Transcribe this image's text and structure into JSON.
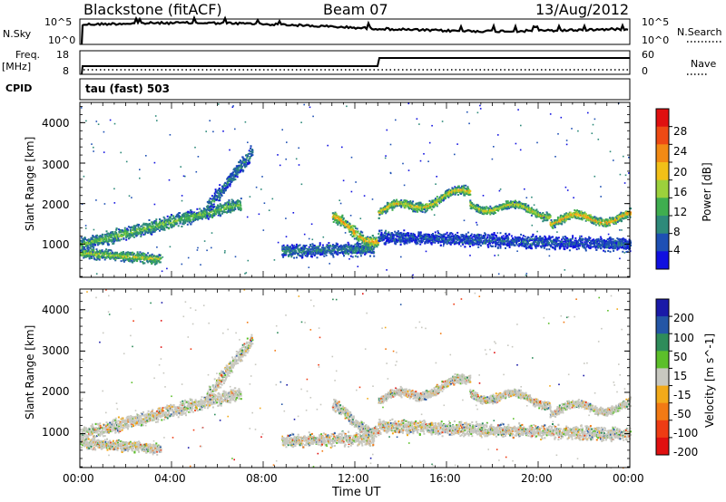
{
  "header": {
    "station": "Blackstone (fitACF)",
    "beam": "Beam 07",
    "date": "13/Aug/2012"
  },
  "summary_panels": {
    "nsky_label": "N.Sky",
    "nsky_ticks": [
      "10^5",
      "10^0"
    ],
    "nsearch_label": "N.Search",
    "nsearch_ticks": [
      "10^5",
      "10^0"
    ],
    "freq_label": "Freq.",
    "freq_unit": "[MHz]",
    "freq_ticks": [
      "18",
      "8"
    ],
    "nave_label": "Nave",
    "nave_ticks": [
      "60",
      "0"
    ],
    "cpid_label": "CPID",
    "cpid_value": "tau (fast) 503"
  },
  "chart_data": [
    {
      "type": "heatmap",
      "panel": "power",
      "ylabel": "Slant Range [km]",
      "yticks": [
        "1000",
        "2000",
        "3000",
        "4000"
      ],
      "ylim": [
        180,
        4500
      ],
      "xlim_hours": [
        0,
        24
      ],
      "colorbar_label": "Power [dB]",
      "colorbar_ticks": [
        "4",
        "8",
        "12",
        "16",
        "20",
        "24",
        "28"
      ],
      "colors": [
        "#1010e0",
        "#1e50b4",
        "#2e8a7a",
        "#3fae4f",
        "#9cd13c",
        "#f2c018",
        "#f28a14",
        "#ee4a14",
        "#e01010"
      ],
      "bands": [
        {
          "t": [
            0.0,
            7.0
          ],
          "r": [
            1000,
            2000
          ],
          "w": 260,
          "level": 0.45
        },
        {
          "t": [
            0.0,
            3.5
          ],
          "r": [
            800,
            650
          ],
          "w": 200,
          "level": 0.55
        },
        {
          "t": [
            5.5,
            7.5
          ],
          "r": [
            1900,
            3300
          ],
          "w": 280,
          "level": 0.25
        },
        {
          "t": [
            8.8,
            12.8
          ],
          "r": [
            850,
            900
          ],
          "w": 260,
          "level": 0.25
        },
        {
          "t": [
            11.0,
            13.0
          ],
          "r": [
            1600,
            1100
          ],
          "w": 220,
          "level": 0.75
        },
        {
          "t": [
            13.0,
            17.0
          ],
          "r": [
            1800,
            2300
          ],
          "w": 180,
          "level": 0.65
        },
        {
          "t": [
            17.0,
            20.5
          ],
          "r": [
            2000,
            1800
          ],
          "w": 160,
          "level": 0.6
        },
        {
          "t": [
            20.5,
            24.0
          ],
          "r": [
            1600,
            1700
          ],
          "w": 160,
          "level": 0.75
        },
        {
          "t": [
            13.0,
            24.0
          ],
          "r": [
            1200,
            1000
          ],
          "w": 260,
          "level": 0.15
        }
      ]
    },
    {
      "type": "heatmap",
      "panel": "velocity",
      "ylabel": "Slant Range [km]",
      "yticks": [
        "1000",
        "2000",
        "3000",
        "4000"
      ],
      "ylim": [
        180,
        4500
      ],
      "xlim_hours": [
        0,
        24
      ],
      "xticks": [
        "00:00",
        "04:00",
        "08:00",
        "12:00",
        "16:00",
        "20:00",
        "00:00"
      ],
      "xlabel": "Time UT",
      "colorbar_label": "Velocity [m s^-1]",
      "colorbar_ticks": [
        "200",
        "100",
        "50",
        "15",
        "-15",
        "-50",
        "-100",
        "-200"
      ],
      "colors": [
        "#1a1aa8",
        "#2456a6",
        "#2e8c5a",
        "#5cbf2a",
        "#c8c8c0",
        "#f2aa1a",
        "#f27a14",
        "#ee3c14",
        "#e01010"
      ],
      "bands": [
        {
          "t": [
            0.0,
            7.0
          ],
          "r": [
            1000,
            2000
          ],
          "w": 260,
          "level": 0.5
        },
        {
          "t": [
            0.0,
            3.5
          ],
          "r": [
            800,
            650
          ],
          "w": 200,
          "level": 0.5
        },
        {
          "t": [
            5.5,
            7.5
          ],
          "r": [
            1900,
            3300
          ],
          "w": 280,
          "level": 0.5
        },
        {
          "t": [
            8.8,
            12.8
          ],
          "r": [
            850,
            900
          ],
          "w": 260,
          "level": 0.5
        },
        {
          "t": [
            11.0,
            13.0
          ],
          "r": [
            1600,
            1100
          ],
          "w": 220,
          "level": 0.5
        },
        {
          "t": [
            13.0,
            17.0
          ],
          "r": [
            1800,
            2300
          ],
          "w": 180,
          "level": 0.5
        },
        {
          "t": [
            17.0,
            20.5
          ],
          "r": [
            2000,
            1800
          ],
          "w": 160,
          "level": 0.5
        },
        {
          "t": [
            20.5,
            24.0
          ],
          "r": [
            1600,
            1700
          ],
          "w": 160,
          "level": 0.5
        },
        {
          "t": [
            13.0,
            24.0
          ],
          "r": [
            1200,
            1000
          ],
          "w": 260,
          "level": 0.5
        }
      ]
    }
  ]
}
